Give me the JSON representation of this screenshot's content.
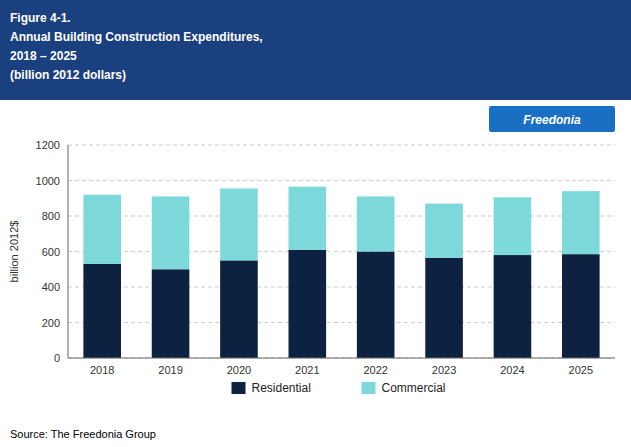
{
  "chart_data": {
    "type": "bar",
    "stacked": true,
    "title": [
      "Figure 4-1.",
      "Annual Building Construction Expenditures,",
      "2018 – 2025",
      "(billion 2012 dollars)"
    ],
    "annotations": [
      "Freedonia",
      "Source: The Freedonia Group"
    ],
    "categories": [
      "2018",
      "2019",
      "2020",
      "2021",
      "2022",
      "2023",
      "2024",
      "2025"
    ],
    "series": [
      {
        "name": "Residential",
        "color": "#0d2240",
        "values": [
          530,
          500,
          550,
          610,
          600,
          565,
          580,
          585
        ]
      },
      {
        "name": "Commercial",
        "color": "#7dd9d9",
        "values": [
          390,
          410,
          405,
          355,
          310,
          305,
          325,
          355
        ]
      }
    ],
    "ylabel": "billion 2012$",
    "ylim": [
      0,
      1200
    ],
    "yticks": [
      0,
      200,
      400,
      600,
      800,
      1000,
      1200
    ],
    "grid": true,
    "legend": "bottom"
  }
}
